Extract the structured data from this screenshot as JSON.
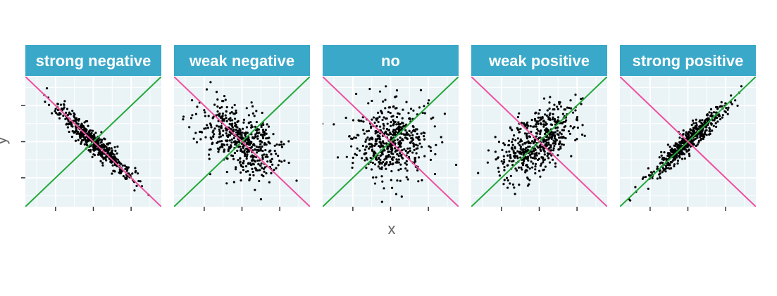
{
  "chart_data": {
    "type": "scatter",
    "facet_labels": [
      "strong negative",
      "weak negative",
      "no",
      "weak positive",
      "strong positive"
    ],
    "correlations": [
      -0.95,
      -0.5,
      0.0,
      0.5,
      0.95
    ],
    "n_points_per_panel": 500,
    "xlabel": "x",
    "ylabel": "y",
    "xlim": [
      -3.6,
      3.6
    ],
    "ylim": [
      -3.6,
      3.6
    ],
    "x_ticks": [
      -2,
      0,
      2
    ],
    "y_ticks": [
      -2,
      0,
      2
    ],
    "tick_labels_shown": false,
    "reference_lines": [
      {
        "slope": 1,
        "intercept": 0,
        "color": "#22a83a"
      },
      {
        "slope": -1,
        "intercept": 0,
        "color": "#ee4fa0"
      }
    ],
    "grid": true,
    "colors": {
      "strip_background": "#3aa8c9",
      "strip_text": "#ffffff",
      "panel_background": "#eaf3f6",
      "grid": "#ffffff",
      "points": "#000000",
      "axis_text": "#666666"
    }
  }
}
